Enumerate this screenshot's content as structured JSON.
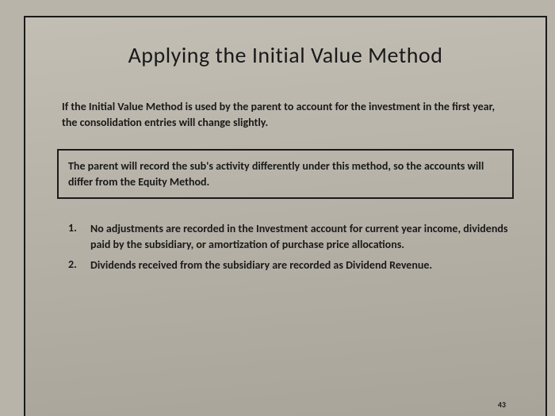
{
  "title": "Applying the Initial Value Method",
  "intro": "If the Initial Value Method is used by the parent to account for the investment in the first year, the consolidation entries will change slightly.",
  "boxed": "The parent will record the sub's activity differently under this method, so the accounts will differ from the Equity Method.",
  "list": [
    {
      "num": "1.",
      "text": "No adjustments are recorded in the Investment account for current year income, dividends paid by the subsidiary, or amortization of purchase price allocations."
    },
    {
      "num": "2.",
      "text": "Dividends received from the subsidiary are recorded as Dividend Revenue."
    }
  ],
  "page_number": "43",
  "colors": {
    "background": "#b8b4aa",
    "text": "#1a1a1a",
    "border": "#1a1a1a"
  },
  "typography": {
    "title_fontsize": 28,
    "body_fontsize": 14,
    "body_weight": 700,
    "title_weight": 400
  }
}
